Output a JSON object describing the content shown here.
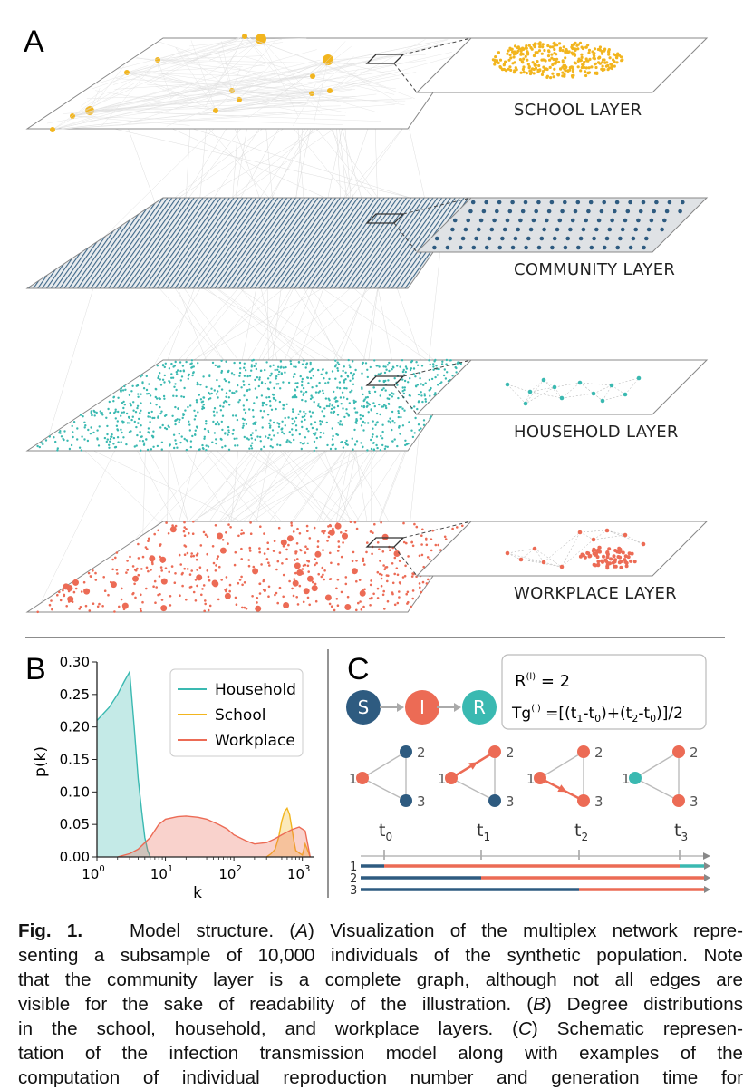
{
  "figure": {
    "panel_a": {
      "letter": "A",
      "layers": [
        {
          "name": "SCHOOL LAYER",
          "color": "#f2b51e"
        },
        {
          "name": "COMMUNITY LAYER",
          "color": "#2e5b80"
        },
        {
          "name": "HOUSEHOLD LAYER",
          "color": "#3ab9b1"
        },
        {
          "name": "WORKPLACE LAYER",
          "color": "#ec6b55"
        }
      ]
    },
    "panel_b": {
      "letter": "B",
      "ylabel": "p(k)",
      "xlabel": "k",
      "yticks": [
        "0.00",
        "0.05",
        "0.10",
        "0.15",
        "0.20",
        "0.25",
        "0.30"
      ],
      "xticks": [
        "10",
        "10",
        "10",
        "10"
      ],
      "xtick_exponents": [
        "0",
        "1",
        "2",
        "3"
      ],
      "legend": [
        "Household",
        "School",
        "Workplace"
      ]
    },
    "panel_c": {
      "letter": "C",
      "states": [
        "S",
        "I",
        "R"
      ],
      "formula_r_base": "R",
      "formula_r_sup": "(l)",
      "formula_r_rest": " = 2",
      "formula_tg": "Tg",
      "formula_tg_sup": "(l)",
      "formula_tg_rest_parts": [
        " =[(t",
        "1",
        "-t",
        "0",
        ")+(t",
        "2",
        "-t",
        "0",
        ")]/2"
      ],
      "node_labels": [
        "1",
        "2",
        "3"
      ],
      "time_labels": [
        "t",
        "t",
        "t",
        "t"
      ],
      "time_subs": [
        "0",
        "1",
        "2",
        "3"
      ],
      "timeline_labels": [
        "1",
        "2",
        "3"
      ]
    }
  },
  "chart_data": {
    "type": "area",
    "xlabel": "k",
    "ylabel": "p(k)",
    "xscale": "log",
    "xlim": [
      1,
      1500
    ],
    "ylim": [
      0,
      0.3
    ],
    "legend_placement": "top-right",
    "series": [
      {
        "name": "Household",
        "color": "#3ab9b1",
        "x": [
          1,
          1.5,
          2,
          2.5,
          3,
          3.5,
          4,
          4.5,
          5,
          5.5,
          6
        ],
        "y": [
          0.21,
          0.23,
          0.25,
          0.27,
          0.285,
          0.2,
          0.12,
          0.07,
          0.03,
          0.01,
          0.0
        ]
      },
      {
        "name": "School",
        "color": "#f2b51e",
        "x": [
          300,
          350,
          400,
          450,
          500,
          550,
          600,
          650,
          700,
          750,
          800,
          900,
          1000,
          1100,
          1300
        ],
        "y": [
          0.0,
          0.005,
          0.012,
          0.03,
          0.055,
          0.07,
          0.075,
          0.065,
          0.045,
          0.025,
          0.01,
          0.006,
          0.003,
          0.02,
          0.0
        ]
      },
      {
        "name": "Workplace",
        "color": "#ec6b55",
        "x": [
          2,
          3,
          4,
          6,
          8,
          10,
          15,
          20,
          30,
          40,
          60,
          80,
          100,
          150,
          200,
          300,
          400,
          500,
          700,
          900,
          1100,
          1300
        ],
        "y": [
          0.0,
          0.005,
          0.012,
          0.03,
          0.05,
          0.058,
          0.062,
          0.063,
          0.061,
          0.058,
          0.05,
          0.043,
          0.034,
          0.025,
          0.02,
          0.022,
          0.028,
          0.034,
          0.042,
          0.046,
          0.04,
          0.0
        ]
      }
    ]
  },
  "caption": {
    "lead": "Fig. 1.",
    "lines": [
      [
        "Model structure. (",
        {
          "i": "A"
        },
        ") Visualization of the multiplex network repre-"
      ],
      [
        "senting a subsample of 10,000 individuals of the synthetic population. Note"
      ],
      [
        "that the community layer is a complete graph, although not all edges are"
      ],
      [
        "visible for the sake of readability of the illustration. (",
        {
          "i": "B"
        },
        ") Degree distributions"
      ],
      [
        "in the school, household, and workplace layers. (",
        {
          "i": "C"
        },
        ") Schematic represen-"
      ],
      [
        "tation of the infection transmission model along with examples of the"
      ],
      [
        "computation of individual reproduction number and generation time for"
      ]
    ]
  }
}
